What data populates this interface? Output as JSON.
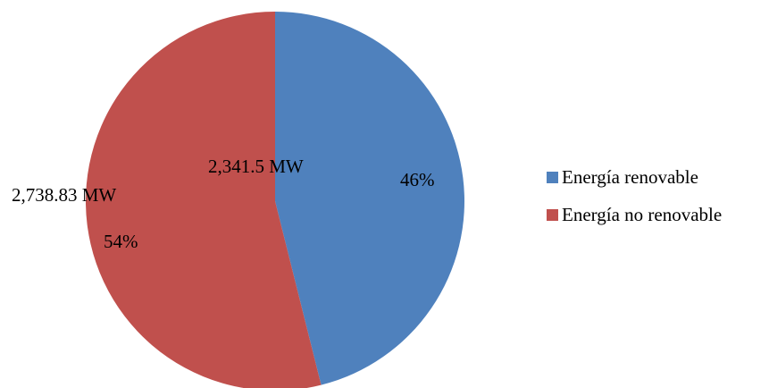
{
  "chart_data": {
    "type": "pie",
    "title": "",
    "categories": [
      "Energía renovable",
      "Energía no renovable"
    ],
    "values": [
      2341.5,
      2738.83
    ],
    "value_labels": [
      "2,341.5 MW",
      "2,738.83 MW"
    ],
    "percent_labels": [
      "46%",
      "54%"
    ],
    "colors": [
      "#4F81BD",
      "#C0504D"
    ],
    "start": "12 o'clock",
    "direction": "clockwise",
    "legend_position": "right"
  }
}
